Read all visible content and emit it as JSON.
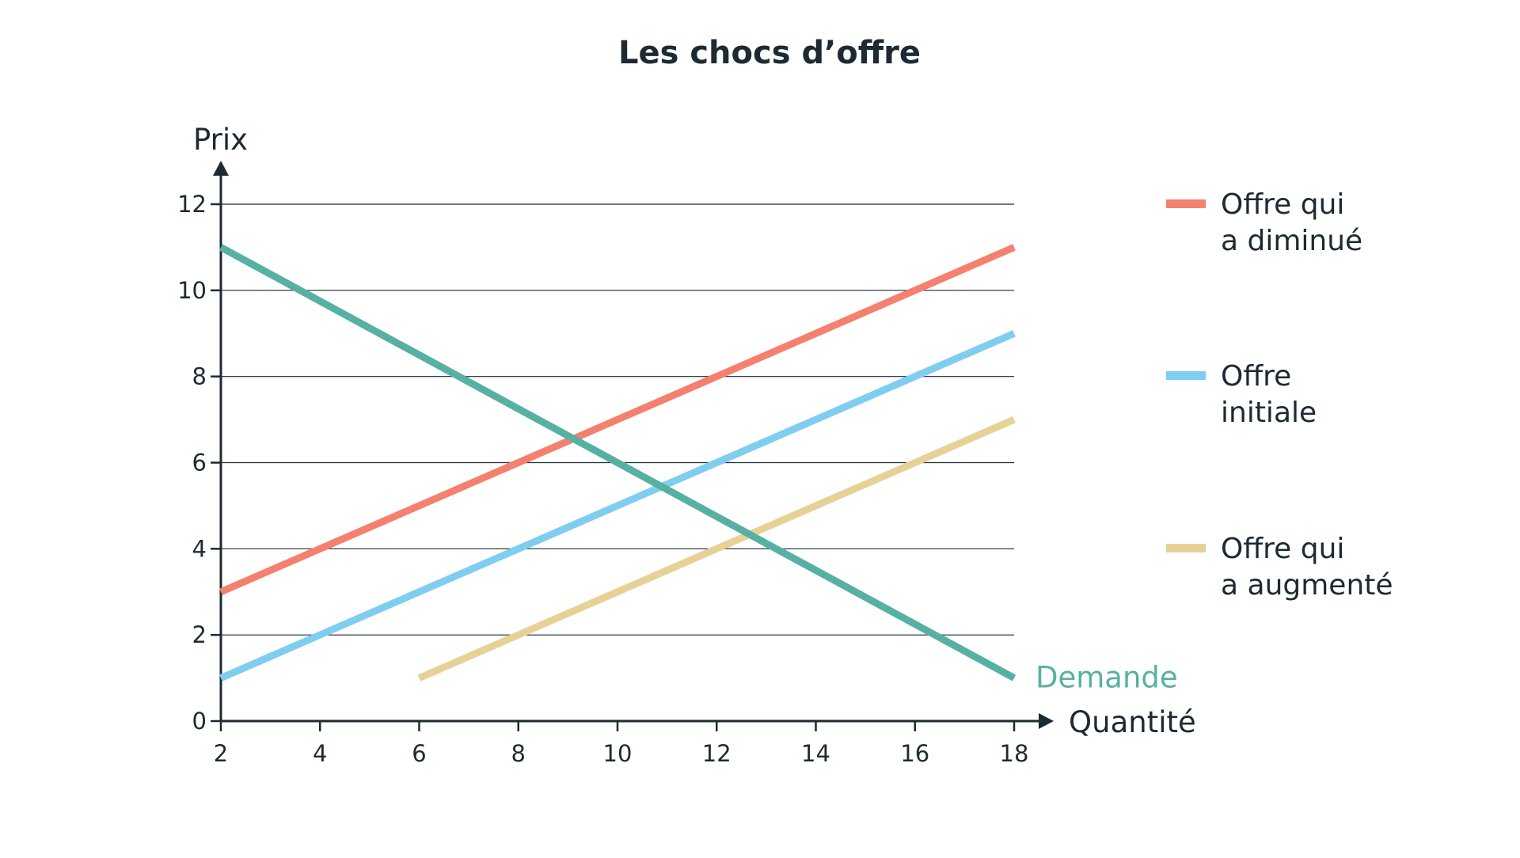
{
  "chart_data": {
    "type": "line",
    "title": "Les chocs d’offre",
    "xlabel": "Quantité",
    "ylabel": "Prix",
    "xlim": [
      2,
      18
    ],
    "ylim": [
      0,
      12
    ],
    "x_ticks": [
      2,
      4,
      6,
      8,
      10,
      12,
      14,
      16,
      18
    ],
    "y_ticks": [
      0,
      2,
      4,
      6,
      8,
      10,
      12
    ],
    "grid": "horizontal",
    "legend_position": "right",
    "series": [
      {
        "name": "Offre qui a diminué",
        "legend_lines": [
          "Offre qui",
          "a diminué"
        ],
        "color": "#f4806d",
        "points": [
          [
            2,
            3
          ],
          [
            18,
            11
          ]
        ]
      },
      {
        "name": "Offre initiale",
        "legend_lines": [
          "Offre",
          "initiale"
        ],
        "color": "#7fcdf0",
        "points": [
          [
            2,
            1
          ],
          [
            18,
            9
          ]
        ]
      },
      {
        "name": "Offre qui a augmenté",
        "legend_lines": [
          "Offre qui",
          "a augmenté"
        ],
        "color": "#e7d196",
        "points": [
          [
            6,
            1
          ],
          [
            18,
            7
          ]
        ]
      },
      {
        "name": "Demande",
        "color": "#57b1a3",
        "points": [
          [
            2,
            11
          ],
          [
            18,
            1
          ]
        ]
      }
    ],
    "annotations": [
      {
        "text": "Demande",
        "series": "Demande",
        "color": "#57b1a3"
      }
    ],
    "colors": {
      "text": "#1c2a33",
      "grid": "#1c2a33"
    }
  }
}
